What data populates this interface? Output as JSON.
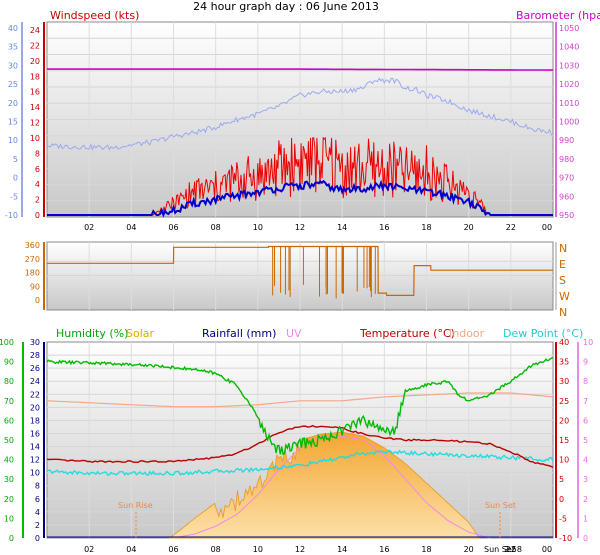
{
  "title": "24 hour graph day : 06 June 2013",
  "colors": {
    "wind_avg": "#0000cc",
    "wind_gust": "#ee0000",
    "temp_axis_blue": "#6688dd",
    "baro": "#cc00cc",
    "baro_axis": "#cc44cc",
    "dir": "#cc6600",
    "hum": "#00bb00",
    "solar": "#f0a830",
    "rain": "#000080",
    "uv": "#ee88ee",
    "temp": "#bb0000",
    "indoor": "#f4a888",
    "dew": "#22dddd",
    "suntext": "#ee8844"
  },
  "time_axis": {
    "ticks": [
      "02",
      "04",
      "06",
      "08",
      "10",
      "12",
      "14",
      "16",
      "18",
      "20",
      "22",
      "00"
    ],
    "extra_labels": [
      "Sun Set",
      "2:58"
    ]
  },
  "panel1": {
    "left_title": "Windspeed (kts)",
    "right_title": "Barometer (hpa)",
    "blue_ticks": [
      "-10",
      "-5",
      "0",
      "5",
      "10",
      "15",
      "20",
      "25",
      "30",
      "35",
      "40"
    ],
    "wind_ticks": [
      "0",
      "2",
      "4",
      "6",
      "8",
      "10",
      "12",
      "14",
      "16",
      "18",
      "20",
      "22",
      "24"
    ],
    "baro_ticks": [
      "950",
      "960",
      "970",
      "980",
      "990",
      "1000",
      "1010",
      "1020",
      "1030",
      "1040",
      "1050"
    ]
  },
  "panel2": {
    "left_ticks": [
      "0",
      "90",
      "180",
      "270",
      "360"
    ],
    "right_labels": [
      "N",
      "W",
      "S",
      "E",
      "N"
    ]
  },
  "panel3": {
    "titles": {
      "humidity": "Humidity (%)",
      "solar": "Solar",
      "rainfall": "Rainfall (mm)",
      "uv": "UV",
      "temperature": "Temperature (°C)",
      "indoor": "Indoor",
      "dewpoint": "Dew Point (°C)"
    },
    "hum_ticks": [
      "0",
      "10",
      "20",
      "30",
      "40",
      "50",
      "60",
      "70",
      "80",
      "90",
      "100"
    ],
    "rain_ticks": [
      "0",
      "2",
      "4",
      "6",
      "8",
      "10",
      "12",
      "14",
      "16",
      "18",
      "20",
      "22",
      "24",
      "26",
      "28",
      "30"
    ],
    "temp_ticks": [
      "-10",
      "-5",
      "0",
      "5",
      "10",
      "15",
      "20",
      "25",
      "30",
      "35",
      "40"
    ],
    "uv_ticks": [
      "0",
      "1",
      "2",
      "3",
      "4",
      "5",
      "6",
      "7",
      "8",
      "9",
      "10"
    ],
    "sunrise_label": "Sun Rise",
    "sunset_label": "Sun Set"
  },
  "chart_data": [
    {
      "type": "line",
      "title": "24 hour graph day : 06 June 2013",
      "x_unit": "hour",
      "xlim": [
        0,
        24
      ],
      "series": [
        {
          "name": "Windspeed (kts)",
          "axis": "wind",
          "ylim": [
            0,
            24
          ],
          "x": [
            0,
            5,
            6,
            7,
            8,
            9,
            10,
            11,
            12,
            13,
            14,
            15,
            16,
            17,
            18,
            19,
            20,
            20.5,
            21,
            24
          ],
          "values": [
            0,
            0,
            0.5,
            1.5,
            2,
            2.5,
            3,
            3.5,
            3.8,
            4,
            3.2,
            3.5,
            3.8,
            3.4,
            3,
            2.5,
            1.8,
            0.8,
            0,
            0
          ]
        },
        {
          "name": "gust",
          "axis": "wind",
          "ylim": [
            0,
            24
          ],
          "x": [
            0,
            5,
            6,
            7,
            8,
            9,
            10,
            11,
            12,
            13,
            14,
            15,
            16,
            17,
            18,
            19,
            20,
            20.5,
            21,
            24
          ],
          "values": [
            0,
            0,
            1.5,
            3,
            3.5,
            4.5,
            5,
            6,
            7,
            7.5,
            6,
            6,
            6,
            5.5,
            5.5,
            4,
            3,
            1.5,
            0,
            0
          ]
        },
        {
          "name": "Barometer (hpa)",
          "axis": "baro",
          "ylim": [
            950,
            1050
          ],
          "x": [
            0,
            12,
            24
          ],
          "values": [
            1028,
            1028,
            1027.5
          ]
        },
        {
          "name": "blue scale",
          "axis": "blue",
          "ylim": [
            -10,
            40
          ],
          "x": [
            0,
            3,
            5,
            6,
            7,
            8,
            9,
            10,
            11,
            11.5,
            12,
            13,
            14,
            15,
            15.5,
            16.5,
            17,
            17.5,
            18,
            19,
            20,
            22,
            23,
            24
          ],
          "values": [
            8.5,
            8,
            9.5,
            11,
            12,
            13.5,
            15.5,
            17,
            19,
            20.5,
            22,
            23,
            23,
            24,
            26,
            26,
            24,
            23.5,
            22,
            20.5,
            18,
            15,
            13,
            12
          ]
        }
      ]
    },
    {
      "type": "line",
      "xlim": [
        0,
        24
      ],
      "ylim": [
        0,
        360
      ],
      "series": [
        {
          "name": "direction",
          "x": [
            0,
            6,
            6.01,
            10.5,
            10.51,
            15.7,
            15.71,
            16.1,
            16.11,
            17.4,
            17.41,
            18.2,
            18.21,
            24
          ],
          "values": [
            240,
            240,
            345,
            345,
            350,
            350,
            45,
            45,
            30,
            30,
            225,
            225,
            195,
            195
          ]
        }
      ]
    },
    {
      "type": "area",
      "xlim": [
        0,
        24
      ],
      "series": [
        {
          "name": "Humidity (%)",
          "axis": "hum",
          "ylim": [
            0,
            100
          ],
          "x": [
            0,
            3,
            5,
            6,
            7,
            8,
            9,
            9.5,
            10,
            10.5,
            11,
            12,
            13,
            14,
            15,
            16,
            16.5,
            17,
            18,
            19,
            19.5,
            20,
            21,
            22,
            23,
            24
          ],
          "values": [
            90,
            89,
            88,
            87,
            86,
            84,
            78,
            70,
            62,
            50,
            45,
            48,
            50,
            55,
            60,
            55,
            55,
            75,
            78,
            80,
            73,
            70,
            73,
            80,
            88,
            92
          ]
        },
        {
          "name": "Temperature (°C)",
          "axis": "temp",
          "ylim": [
            -10,
            40
          ],
          "x": [
            0,
            2,
            4,
            6,
            8,
            9,
            10,
            11,
            12,
            13,
            14,
            15,
            16,
            17,
            18,
            19,
            20,
            21,
            22,
            23,
            24
          ],
          "values": [
            10,
            9.5,
            9.5,
            9.5,
            10.5,
            11.5,
            14,
            17,
            18.5,
            18.5,
            18,
            16.5,
            15.5,
            15,
            15,
            14.8,
            14.5,
            14,
            12,
            9.5,
            8
          ]
        },
        {
          "name": "Indoor",
          "axis": "temp",
          "ylim": [
            -10,
            40
          ],
          "x": [
            0,
            4,
            6,
            8,
            10,
            12,
            14,
            16,
            18,
            20,
            22,
            24
          ],
          "values": [
            25,
            24,
            23.5,
            23.5,
            24,
            25,
            25,
            26,
            26.5,
            27,
            27,
            26
          ]
        },
        {
          "name": "Dew Point (°C)",
          "axis": "temp",
          "ylim": [
            -10,
            40
          ],
          "x": [
            0,
            2,
            4,
            6,
            8,
            10,
            11,
            12,
            13,
            14,
            15,
            16,
            18,
            20,
            22,
            24
          ],
          "values": [
            7,
            6.5,
            6.5,
            6.5,
            7,
            7.5,
            8,
            8.5,
            9.5,
            10.5,
            11.5,
            12,
            11.5,
            11,
            10.5,
            10
          ]
        },
        {
          "name": "Solar",
          "axis": "temp",
          "ylim": [
            -10,
            40
          ],
          "x": [
            5.8,
            6.2,
            7,
            8,
            9,
            10,
            11,
            12,
            13,
            14,
            15,
            16,
            17,
            18,
            19,
            20,
            20.5
          ],
          "values": [
            -10,
            -8.5,
            -5,
            -1,
            2,
            6,
            12,
            15,
            16.5,
            17,
            16,
            13,
            9,
            4,
            -1,
            -6,
            -10
          ]
        },
        {
          "name": "UV",
          "axis": "uv",
          "ylim": [
            0,
            10
          ],
          "x": [
            6,
            7,
            8,
            9,
            10,
            11,
            12,
            13,
            14,
            15,
            16,
            17,
            18,
            19,
            20,
            21
          ],
          "values": [
            0,
            0.2,
            0.6,
            1.2,
            2.2,
            3.5,
            4.6,
            5.2,
            5.2,
            5,
            4.2,
            3,
            1.8,
            0.9,
            0.3,
            0
          ]
        }
      ]
    }
  ]
}
